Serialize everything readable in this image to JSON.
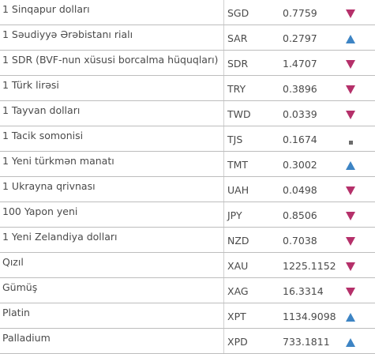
{
  "rates": [
    {
      "name": "1 Sinqapur dolları",
      "code": "SGD",
      "rate": "0.7759",
      "trend": "down",
      "trend_icon": "down-triangle-icon"
    },
    {
      "name": "1 Səudiyyə Ərəbistanı rialı",
      "code": "SAR",
      "rate": "0.2797",
      "trend": "up",
      "trend_icon": "up-triangle-icon"
    },
    {
      "name": "1 SDR (BVF-nun xüsusi borcalma hüquqları)",
      "code": "SDR",
      "rate": "1.4707",
      "trend": "down",
      "trend_icon": "down-triangle-icon"
    },
    {
      "name": "1 Türk lirəsi",
      "code": "TRY",
      "rate": "0.3896",
      "trend": "down",
      "trend_icon": "down-triangle-icon"
    },
    {
      "name": "1 Tayvan dolları",
      "code": "TWD",
      "rate": "0.0339",
      "trend": "down",
      "trend_icon": "down-triangle-icon"
    },
    {
      "name": "1 Tacik somonisi",
      "code": "TJS",
      "rate": "0.1674",
      "trend": "same",
      "trend_icon": "square-dot-icon"
    },
    {
      "name": "1 Yeni türkmən manatı",
      "code": "TMT",
      "rate": "0.3002",
      "trend": "up",
      "trend_icon": "up-triangle-icon"
    },
    {
      "name": "1 Ukrayna qrivnası",
      "code": "UAH",
      "rate": "0.0498",
      "trend": "down",
      "trend_icon": "down-triangle-icon"
    },
    {
      "name": "100 Yapon yeni",
      "code": "JPY",
      "rate": "0.8506",
      "trend": "down",
      "trend_icon": "down-triangle-icon"
    },
    {
      "name": "1 Yeni Zelandiya dolları",
      "code": "NZD",
      "rate": "0.7038",
      "trend": "down",
      "trend_icon": "down-triangle-icon"
    },
    {
      "name": "Qızıl",
      "code": "XAU",
      "rate": "1225.1152",
      "trend": "down",
      "trend_icon": "down-triangle-icon"
    },
    {
      "name": "Gümüş",
      "code": "XAG",
      "rate": "16.3314",
      "trend": "down",
      "trend_icon": "down-triangle-icon"
    },
    {
      "name": "Platin",
      "code": "XPT",
      "rate": "1134.9098",
      "trend": "up",
      "trend_icon": "up-triangle-icon"
    },
    {
      "name": "Palladium",
      "code": "XPD",
      "rate": "733.1811",
      "trend": "up",
      "trend_icon": "up-triangle-icon"
    }
  ],
  "colors": {
    "down": "#b5306a",
    "up": "#3d84c4",
    "same": "#6b6b6b",
    "text": "#4a4a4a",
    "row_border": "#bdbdbd"
  }
}
